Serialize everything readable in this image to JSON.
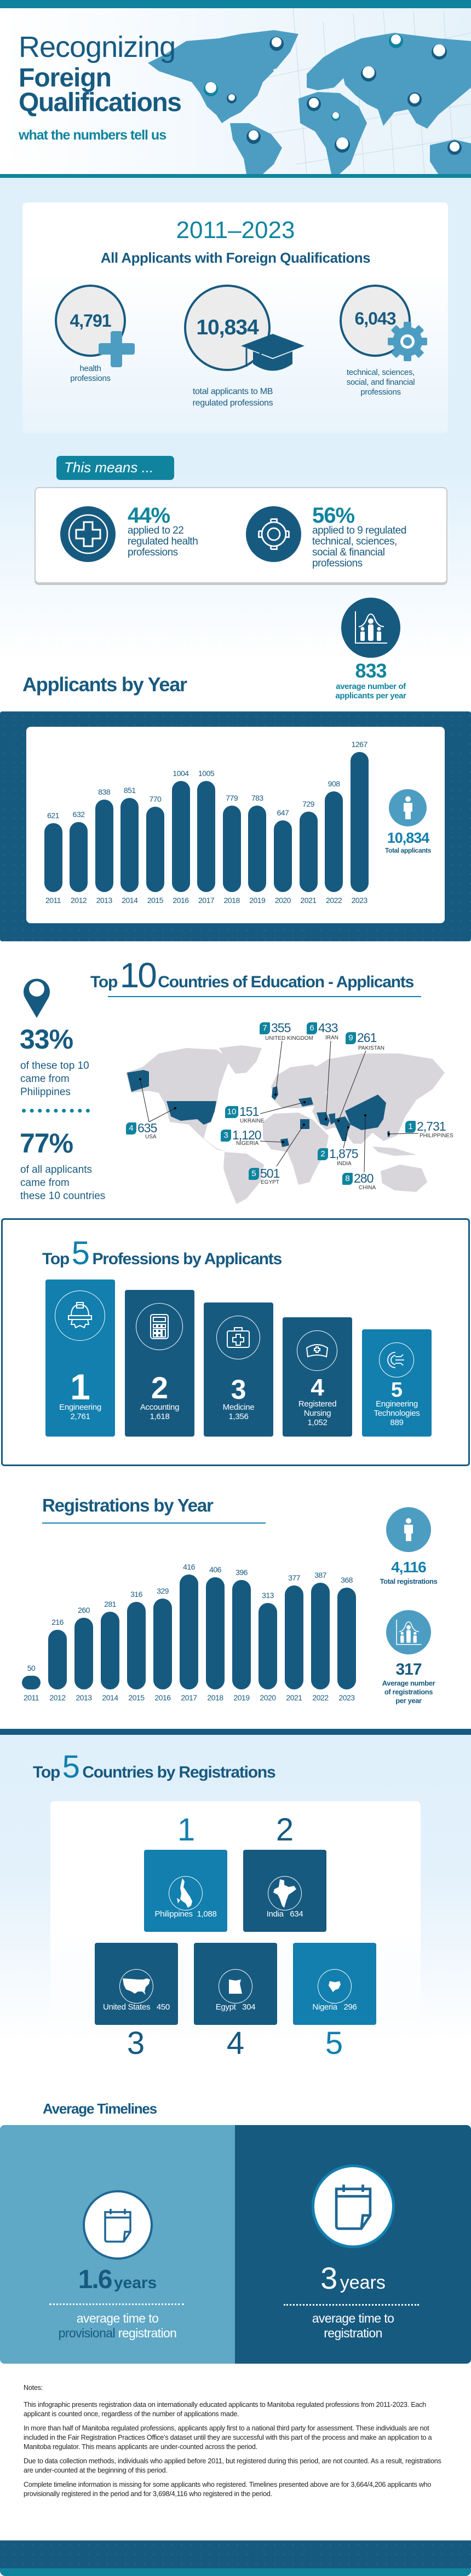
{
  "colors": {
    "dark_blue": "#175a80",
    "teal": "#10849e",
    "mid_blue": "#127fae",
    "light_blue": "#4d9dc3",
    "pale_bg": "#dff0fb",
    "map_grey": "#d8d6da"
  },
  "hero": {
    "title_line1": "Recognizing",
    "title_line2": "Foreign",
    "title_line3": "Qualifications",
    "subtitle": "what the numbers tell us"
  },
  "overview": {
    "period": "2011–2023",
    "heading": "All Applicants with Foreign Qualifications",
    "stats": [
      {
        "value": "4,791",
        "label": "health\nprofessions",
        "icon": "plus-icon"
      },
      {
        "value": "10,834",
        "label": "total applicants to MB\nregulated professions",
        "icon": "graduation-cap-icon"
      },
      {
        "value": "6,043",
        "label": "technical, sciences,\nsocial, and financial\nprofessions",
        "icon": "gear-icon"
      }
    ]
  },
  "this_means": {
    "tab": "This means ...",
    "items": [
      {
        "pct": "44%",
        "text": "applied to 22\nregulated health\nprofessions",
        "icon": "medical-cross-icon"
      },
      {
        "pct": "56%",
        "text": "applied to 9 regulated\ntechnical, sciences,\nsocial & financial\nprofessions",
        "icon": "gear-icon"
      }
    ]
  },
  "average_applicants": {
    "value": "833",
    "label": "average number of\napplicants per year"
  },
  "applicants_by_year": {
    "heading": "Applicants by Year",
    "total_value": "10,834",
    "total_label": "Total applicants"
  },
  "top10": {
    "heading_pre": "Top",
    "heading_num": "10",
    "heading_post": "Countries of Education - Applicants",
    "stat1": {
      "value": "33%",
      "text": "of these top 10\ncame from\nPhilippines"
    },
    "stat2": {
      "value": "77%",
      "text": "of all applicants\ncame from\nthese 10 countries"
    },
    "countries": [
      {
        "rank": "1",
        "value": "2,731",
        "name": "PHILIPPINES"
      },
      {
        "rank": "2",
        "value": "1,875",
        "name": "INDIA"
      },
      {
        "rank": "3",
        "value": "1,120",
        "name": "NIGERIA"
      },
      {
        "rank": "4",
        "value": "635",
        "name": "USA"
      },
      {
        "rank": "5",
        "value": "501",
        "name": "EGYPT"
      },
      {
        "rank": "6",
        "value": "433",
        "name": "IRAN"
      },
      {
        "rank": "7",
        "value": "355",
        "name": "UNITED KINGDOM"
      },
      {
        "rank": "8",
        "value": "280",
        "name": "CHINA"
      },
      {
        "rank": "9",
        "value": "261",
        "name": "PAKISTAN"
      },
      {
        "rank": "10",
        "value": "151",
        "name": "UKRAINE"
      }
    ]
  },
  "professions": {
    "heading_pre": "Top",
    "heading_num": "5",
    "heading_post": "Professions by Applicants",
    "items": [
      {
        "rank": "1",
        "name": "Engineering",
        "value": "2,761",
        "icon": "engineer-helmet-icon"
      },
      {
        "rank": "2",
        "name": "Accounting",
        "value": "1,618",
        "icon": "calculator-icon"
      },
      {
        "rank": "3",
        "name": "Medicine",
        "value": "1,356",
        "icon": "medical-kit-icon"
      },
      {
        "rank": "4",
        "name": "Registered\nNursing",
        "value": "1,052",
        "icon": "nurse-cap-icon"
      },
      {
        "rank": "5",
        "name": "Engineering\nTechnologies",
        "value": "889",
        "icon": "circuit-gear-icon"
      }
    ]
  },
  "registrations_by_year": {
    "heading": "Registrations by Year",
    "total_value": "4,116",
    "total_label": "Total registrations",
    "avg_value": "317",
    "avg_label": "Average number\nof registrations\nper year"
  },
  "top5_countries": {
    "heading_pre": "Top",
    "heading_num": "5",
    "heading_post": "Countries by Registrations",
    "items": [
      {
        "rank": "1",
        "name": "Philippines",
        "value": "1,088"
      },
      {
        "rank": "2",
        "name": "India",
        "value": "634"
      },
      {
        "rank": "3",
        "name": "United States",
        "value": "450"
      },
      {
        "rank": "4",
        "name": "Egypt",
        "value": "304"
      },
      {
        "rank": "5",
        "name": "Nigeria",
        "value": "296"
      }
    ]
  },
  "timelines": {
    "heading": "Average Timelines",
    "provisional": {
      "value": "1.6",
      "unit": "years",
      "line1": "average time to",
      "highlight": "provisional",
      "line2": "registration"
    },
    "full": {
      "value": "3",
      "unit": "years",
      "line1": "average time to",
      "line2": "registration"
    }
  },
  "notes": {
    "title": "Notes:",
    "paragraphs": [
      "This infographic presents registration data on internationally educated applicants to Manitoba regulated professions from 2011-2023. Each applicant is counted once, regardless of the number of applications made.",
      "In more than half of Manitoba regulated professions, applicants apply first to a national third party for assessment. These individuals are not included in the Fair Registration Practices Office’s dataset until they are successful with this part of the process and make an application to a Manitoba regulator. This means applicants are under-counted across the period.",
      "Due to data collection methods, individuals who applied before 2011, but registered during this period, are not counted. As a result, registrations are under-counted at the beginning of this period.",
      "Complete timeline information is missing for some applicants who registered. Timelines presented above are for 3,664/4,206 applicants who provisionally registered in the period and for 3,698/4,116 who registered in the period."
    ]
  },
  "chart_data": [
    {
      "type": "bar",
      "title": "Applicants by Year",
      "categories": [
        "2011",
        "2012",
        "2013",
        "2014",
        "2015",
        "2016",
        "2017",
        "2018",
        "2019",
        "2020",
        "2021",
        "2022",
        "2023"
      ],
      "values": [
        621,
        632,
        838,
        851,
        770,
        1004,
        1005,
        779,
        783,
        647,
        729,
        908,
        1267
      ],
      "data_labels": true,
      "grid": false
    },
    {
      "type": "bar",
      "title": "Registrations by Year",
      "categories": [
        "2011",
        "2012",
        "2013",
        "2014",
        "2015",
        "2016",
        "2017",
        "2018",
        "2019",
        "2020",
        "2021",
        "2022",
        "2023"
      ],
      "values": [
        50,
        216,
        260,
        281,
        316,
        329,
        416,
        406,
        396,
        313,
        377,
        387,
        368
      ],
      "data_labels": true,
      "grid": false
    }
  ]
}
